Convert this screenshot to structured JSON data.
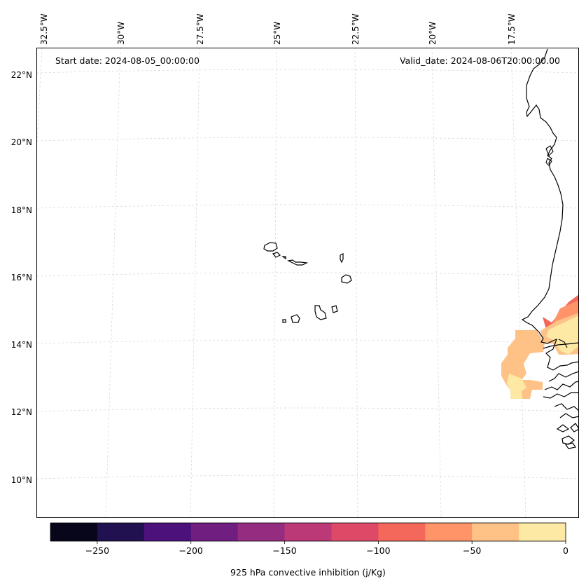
{
  "map": {
    "start_date": "Start date: 2024-08-05_00:00:00",
    "valid_date": "Valid_date: 2024-08-06T20:00:00.00",
    "lon_labels": [
      "32.5°W",
      "30°W",
      "27.5°W",
      "25°W",
      "22.5°W",
      "20°W",
      "17.5°W"
    ],
    "lat_labels": [
      "22°N",
      "20°N",
      "18°N",
      "16°N",
      "14°N",
      "12°N",
      "10°N"
    ],
    "coastline_color": "#000000",
    "gridline_color": "#d9d9d9"
  },
  "colorbar": {
    "label": "925 hPa convective inhibition (j/Kg)",
    "tick_labels": [
      "−250",
      "−200",
      "−150",
      "−100",
      "−50",
      "0"
    ],
    "tick_values": [
      -250,
      -200,
      -150,
      -100,
      -50,
      0
    ],
    "vmin": -275,
    "vmax": 0,
    "bin_edges": [
      -275,
      -250,
      -225,
      -200,
      -175,
      -150,
      -125,
      -100,
      -75,
      -50,
      -25,
      0
    ],
    "colors": [
      "#07061a",
      "#221150",
      "#4d117b",
      "#701f81",
      "#952c80",
      "#bb3977",
      "#de4968",
      "#f4685c",
      "#fe9468",
      "#fec286",
      "#fde8a4"
    ]
  }
}
